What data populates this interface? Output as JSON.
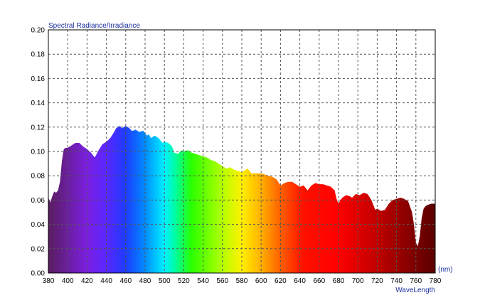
{
  "chart_data": {
    "type": "area",
    "title": "Spectral Radiance/Irradiance",
    "xlabel": "WaveLength",
    "xunit": "(nm)",
    "ylabel": "",
    "xlim": [
      380,
      780
    ],
    "ylim": [
      0,
      0.2
    ],
    "grid": true,
    "fill": "visible-spectrum-gradient",
    "x_ticks": [
      "380",
      "400",
      "420",
      "440",
      "460",
      "480",
      "500",
      "520",
      "540",
      "560",
      "580",
      "600",
      "620",
      "640",
      "660",
      "680",
      "700",
      "720",
      "740",
      "760",
      "780"
    ],
    "y_ticks": [
      "0.00",
      "0.02",
      "0.04",
      "0.06",
      "0.08",
      "0.10",
      "0.12",
      "0.14",
      "0.16",
      "0.18",
      "0.20"
    ],
    "series": [
      {
        "x": [
          380,
          382,
          384,
          386,
          388,
          390,
          392,
          394,
          396,
          398,
          400,
          404,
          408,
          412,
          416,
          420,
          424,
          428,
          432,
          436,
          440,
          444,
          448,
          450,
          452,
          454,
          456,
          458,
          460,
          462,
          464,
          466,
          468,
          470,
          472,
          474,
          478,
          482,
          484,
          486,
          488,
          490,
          494,
          498,
          500,
          504,
          508,
          510,
          514,
          518,
          520,
          524,
          528,
          532,
          536,
          540,
          544,
          548,
          552,
          556,
          560,
          564,
          568,
          572,
          576,
          580,
          584,
          586,
          588,
          590,
          594,
          598,
          600,
          604,
          608,
          612,
          616,
          620,
          624,
          628,
          632,
          636,
          640,
          644,
          648,
          652,
          656,
          660,
          664,
          668,
          672,
          676,
          678,
          680,
          682,
          684,
          688,
          692,
          694,
          698,
          702,
          706,
          710,
          714,
          718,
          720,
          724,
          728,
          732,
          736,
          740,
          744,
          748,
          752,
          756,
          758,
          760,
          762,
          764,
          766,
          768,
          770,
          772,
          776,
          780
        ],
        "y": [
          0.062,
          0.058,
          0.063,
          0.067,
          0.066,
          0.068,
          0.075,
          0.092,
          0.102,
          0.103,
          0.103,
          0.105,
          0.107,
          0.107,
          0.104,
          0.102,
          0.099,
          0.095,
          0.101,
          0.106,
          0.108,
          0.111,
          0.116,
          0.119,
          0.12,
          0.121,
          0.119,
          0.12,
          0.121,
          0.12,
          0.119,
          0.117,
          0.117,
          0.118,
          0.117,
          0.116,
          0.117,
          0.113,
          0.114,
          0.111,
          0.112,
          0.113,
          0.111,
          0.107,
          0.108,
          0.107,
          0.104,
          0.099,
          0.098,
          0.101,
          0.1,
          0.101,
          0.099,
          0.098,
          0.097,
          0.096,
          0.095,
          0.093,
          0.092,
          0.09,
          0.088,
          0.086,
          0.087,
          0.085,
          0.084,
          0.083,
          0.085,
          0.086,
          0.084,
          0.082,
          0.082,
          0.082,
          0.082,
          0.081,
          0.08,
          0.079,
          0.077,
          0.072,
          0.074,
          0.075,
          0.075,
          0.073,
          0.071,
          0.072,
          0.068,
          0.072,
          0.074,
          0.073,
          0.073,
          0.072,
          0.071,
          0.068,
          0.061,
          0.057,
          0.06,
          0.062,
          0.064,
          0.063,
          0.062,
          0.065,
          0.064,
          0.066,
          0.065,
          0.06,
          0.052,
          0.053,
          0.051,
          0.052,
          0.057,
          0.06,
          0.061,
          0.062,
          0.061,
          0.059,
          0.05,
          0.04,
          0.025,
          0.022,
          0.03,
          0.045,
          0.053,
          0.055,
          0.056,
          0.057,
          0.057
        ]
      }
    ]
  }
}
